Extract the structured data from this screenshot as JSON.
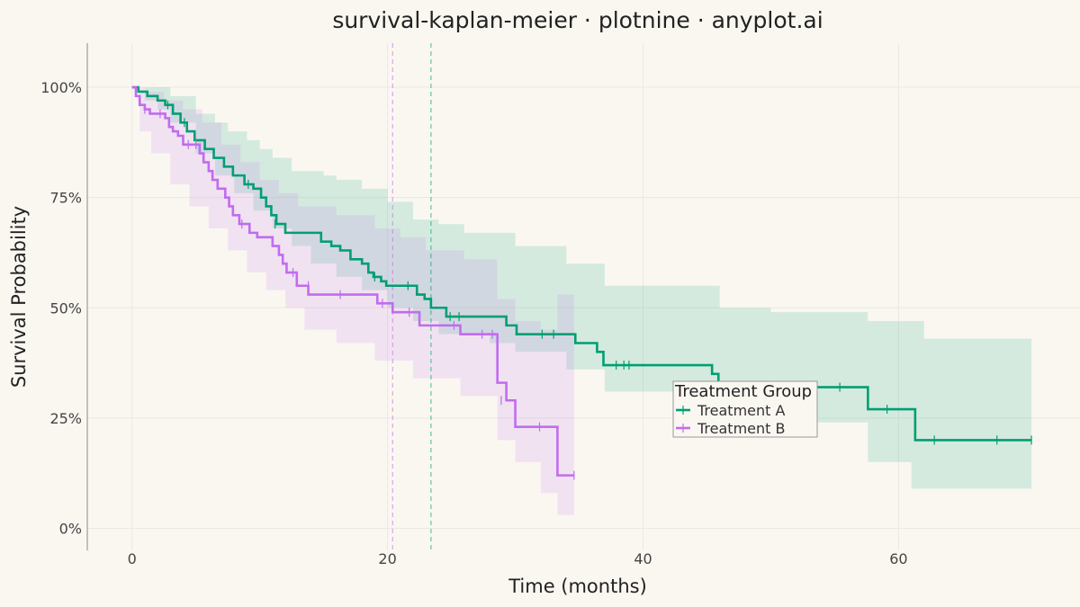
{
  "chart_data": {
    "type": "line",
    "title": "survival-kaplan-meier · plotnine · anyplot.ai",
    "xlabel": "Time (months)",
    "ylabel": "Survival Probability",
    "xlim": [
      -3.5,
      74.2
    ],
    "ylim": [
      -0.05,
      1.1
    ],
    "x_ticks": [
      0,
      20,
      40,
      60
    ],
    "x_tick_labels": [
      "0",
      "20",
      "40",
      "60"
    ],
    "y_ticks": [
      0,
      0.25,
      0.5,
      0.75,
      1.0
    ],
    "y_tick_labels": [
      "0%",
      "25%",
      "50%",
      "75%",
      "100%"
    ],
    "grid": true,
    "legend": {
      "title": "Treatment Group",
      "placement": "center-right"
    },
    "series": [
      {
        "name": "Treatment A",
        "color": "#009E73",
        "median": 23.4,
        "steps": [
          [
            0,
            1.0
          ],
          [
            0.5,
            0.99
          ],
          [
            1.2,
            0.98
          ],
          [
            2.0,
            0.97
          ],
          [
            2.6,
            0.96
          ],
          [
            3.2,
            0.94
          ],
          [
            3.8,
            0.92
          ],
          [
            4.3,
            0.9
          ],
          [
            4.9,
            0.88
          ],
          [
            5.7,
            0.86
          ],
          [
            6.4,
            0.84
          ],
          [
            7.2,
            0.82
          ],
          [
            7.9,
            0.8
          ],
          [
            8.8,
            0.78
          ],
          [
            9.5,
            0.77
          ],
          [
            10.1,
            0.75
          ],
          [
            10.5,
            0.73
          ],
          [
            10.9,
            0.71
          ],
          [
            11.3,
            0.69
          ],
          [
            12.0,
            0.67
          ],
          [
            14.8,
            0.65
          ],
          [
            15.6,
            0.64
          ],
          [
            16.3,
            0.63
          ],
          [
            17.1,
            0.61
          ],
          [
            18.0,
            0.6
          ],
          [
            18.5,
            0.58
          ],
          [
            18.9,
            0.57
          ],
          [
            19.5,
            0.56
          ],
          [
            19.9,
            0.55
          ],
          [
            22.3,
            0.53
          ],
          [
            22.9,
            0.52
          ],
          [
            23.4,
            0.5
          ],
          [
            24.6,
            0.48
          ],
          [
            29.3,
            0.46
          ],
          [
            30.1,
            0.44
          ],
          [
            34.7,
            0.42
          ],
          [
            36.4,
            0.4
          ],
          [
            36.9,
            0.37
          ],
          [
            45.4,
            0.35
          ],
          [
            45.9,
            0.32
          ],
          [
            57.6,
            0.27
          ],
          [
            61.3,
            0.2
          ],
          [
            70.4,
            0.2
          ]
        ],
        "ci_upper": [
          [
            0,
            1.0
          ],
          [
            1.5,
            1.0
          ],
          [
            3.0,
            0.98
          ],
          [
            5.0,
            0.94
          ],
          [
            6.5,
            0.92
          ],
          [
            7.5,
            0.9
          ],
          [
            9.0,
            0.88
          ],
          [
            10.0,
            0.86
          ],
          [
            11.0,
            0.84
          ],
          [
            12.5,
            0.81
          ],
          [
            15.0,
            0.8
          ],
          [
            16.0,
            0.79
          ],
          [
            18.0,
            0.77
          ],
          [
            20.0,
            0.74
          ],
          [
            22.0,
            0.7
          ],
          [
            24.0,
            0.69
          ],
          [
            26.0,
            0.67
          ],
          [
            30.0,
            0.64
          ],
          [
            34.0,
            0.6
          ],
          [
            37.0,
            0.55
          ],
          [
            46.0,
            0.5
          ],
          [
            50.0,
            0.49
          ],
          [
            57.6,
            0.47
          ],
          [
            62.0,
            0.43
          ],
          [
            70.4,
            0.43
          ]
        ],
        "ci_lower": [
          [
            0,
            1.0
          ],
          [
            1.0,
            0.97
          ],
          [
            2.0,
            0.95
          ],
          [
            3.0,
            0.92
          ],
          [
            5.0,
            0.85
          ],
          [
            6.5,
            0.8
          ],
          [
            8.0,
            0.76
          ],
          [
            9.5,
            0.72
          ],
          [
            11.0,
            0.68
          ],
          [
            12.5,
            0.64
          ],
          [
            14.0,
            0.6
          ],
          [
            16.0,
            0.57
          ],
          [
            18.0,
            0.54
          ],
          [
            20.0,
            0.5
          ],
          [
            22.0,
            0.47
          ],
          [
            24.0,
            0.44
          ],
          [
            28.0,
            0.42
          ],
          [
            30.0,
            0.4
          ],
          [
            34.0,
            0.36
          ],
          [
            37.0,
            0.31
          ],
          [
            46.0,
            0.25
          ],
          [
            50.0,
            0.24
          ],
          [
            57.6,
            0.15
          ],
          [
            61.0,
            0.09
          ],
          [
            70.4,
            0.09
          ]
        ],
        "censored": [
          [
            2.8,
            0.96
          ],
          [
            4.1,
            0.92
          ],
          [
            9.1,
            0.78
          ],
          [
            11.2,
            0.69
          ],
          [
            19.0,
            0.57
          ],
          [
            21.6,
            0.55
          ],
          [
            24.9,
            0.48
          ],
          [
            25.6,
            0.48
          ],
          [
            32.1,
            0.44
          ],
          [
            33.0,
            0.44
          ],
          [
            37.9,
            0.37
          ],
          [
            38.5,
            0.37
          ],
          [
            38.9,
            0.37
          ],
          [
            46.5,
            0.32
          ],
          [
            55.4,
            0.32
          ],
          [
            59.1,
            0.27
          ],
          [
            62.8,
            0.2
          ],
          [
            67.7,
            0.2
          ],
          [
            70.4,
            0.2
          ]
        ]
      },
      {
        "name": "Treatment B",
        "color": "#C06CF0",
        "median": 20.4,
        "steps": [
          [
            0,
            1.0
          ],
          [
            0.3,
            0.98
          ],
          [
            0.6,
            0.96
          ],
          [
            1.0,
            0.95
          ],
          [
            1.4,
            0.94
          ],
          [
            2.6,
            0.93
          ],
          [
            2.9,
            0.91
          ],
          [
            3.2,
            0.9
          ],
          [
            3.6,
            0.89
          ],
          [
            4.0,
            0.87
          ],
          [
            5.3,
            0.85
          ],
          [
            5.6,
            0.83
          ],
          [
            6.0,
            0.81
          ],
          [
            6.3,
            0.79
          ],
          [
            6.7,
            0.77
          ],
          [
            7.3,
            0.75
          ],
          [
            7.6,
            0.73
          ],
          [
            7.9,
            0.71
          ],
          [
            8.4,
            0.69
          ],
          [
            9.2,
            0.67
          ],
          [
            9.8,
            0.66
          ],
          [
            11.0,
            0.64
          ],
          [
            11.5,
            0.62
          ],
          [
            11.8,
            0.6
          ],
          [
            12.1,
            0.58
          ],
          [
            12.9,
            0.55
          ],
          [
            13.8,
            0.53
          ],
          [
            19.2,
            0.51
          ],
          [
            20.4,
            0.49
          ],
          [
            22.5,
            0.46
          ],
          [
            25.7,
            0.44
          ],
          [
            28.6,
            0.33
          ],
          [
            29.3,
            0.29
          ],
          [
            30.0,
            0.23
          ],
          [
            33.3,
            0.12
          ],
          [
            34.6,
            0.12
          ]
        ],
        "ci_upper": [
          [
            0,
            1.0
          ],
          [
            1.0,
            0.99
          ],
          [
            2.5,
            0.97
          ],
          [
            4.0,
            0.95
          ],
          [
            5.5,
            0.92
          ],
          [
            7.0,
            0.87
          ],
          [
            8.5,
            0.83
          ],
          [
            10.0,
            0.79
          ],
          [
            11.5,
            0.76
          ],
          [
            13.0,
            0.73
          ],
          [
            16.0,
            0.71
          ],
          [
            19.0,
            0.68
          ],
          [
            21.0,
            0.66
          ],
          [
            23.0,
            0.63
          ],
          [
            26.0,
            0.61
          ],
          [
            28.6,
            0.52
          ],
          [
            30.0,
            0.47
          ],
          [
            32.0,
            0.45
          ],
          [
            33.3,
            0.53
          ],
          [
            34.6,
            0.53
          ]
        ],
        "ci_lower": [
          [
            0,
            1.0
          ],
          [
            0.6,
            0.9
          ],
          [
            1.5,
            0.85
          ],
          [
            3.0,
            0.78
          ],
          [
            4.5,
            0.73
          ],
          [
            6.0,
            0.68
          ],
          [
            7.5,
            0.63
          ],
          [
            9.0,
            0.58
          ],
          [
            10.5,
            0.54
          ],
          [
            12.0,
            0.5
          ],
          [
            13.5,
            0.45
          ],
          [
            16.0,
            0.42
          ],
          [
            19.0,
            0.38
          ],
          [
            22.0,
            0.34
          ],
          [
            25.7,
            0.3
          ],
          [
            28.6,
            0.2
          ],
          [
            30.0,
            0.15
          ],
          [
            32.0,
            0.08
          ],
          [
            33.3,
            0.03
          ],
          [
            34.6,
            0.03
          ]
        ],
        "censored": [
          [
            1.0,
            0.95
          ],
          [
            2.2,
            0.94
          ],
          [
            4.4,
            0.87
          ],
          [
            5.0,
            0.87
          ],
          [
            8.6,
            0.69
          ],
          [
            12.6,
            0.58
          ],
          [
            13.8,
            0.55
          ],
          [
            16.3,
            0.53
          ],
          [
            19.6,
            0.51
          ],
          [
            21.7,
            0.49
          ],
          [
            25.2,
            0.46
          ],
          [
            27.4,
            0.44
          ],
          [
            28.2,
            0.44
          ],
          [
            28.9,
            0.29
          ],
          [
            31.9,
            0.23
          ],
          [
            34.6,
            0.12
          ]
        ]
      }
    ]
  }
}
